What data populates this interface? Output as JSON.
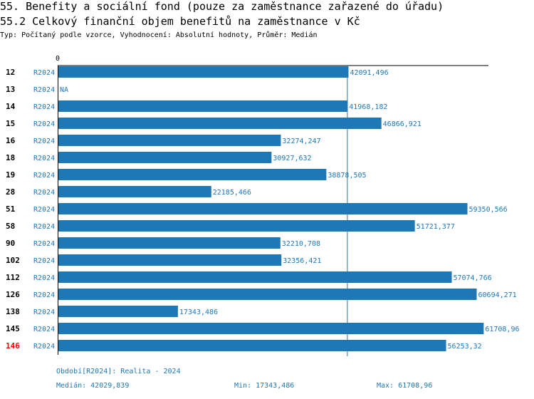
{
  "header": {
    "title": "55. Benefity a sociální fond (pouze za zaměstnance zařazené do úřadu)",
    "subtitle": "55.2 Celkový finanční objem benefitů na zaměstnance v Kč",
    "type_line": "Typ: Počítaný podle vzorce, Vyhodnocení: Absolutní hodnoty, Průměr: Medián"
  },
  "colors": {
    "bar": "#1f77b4",
    "label": "#1f77b4",
    "highlight": "#ff0000",
    "axis": "#000000"
  },
  "chart_data": {
    "type": "bar",
    "orientation": "horizontal",
    "x_tick_labels": [
      "0"
    ],
    "xlim": [
      0,
      62500000
    ],
    "median": 42029839,
    "rows": [
      {
        "category": "12",
        "period": "R2024",
        "value": 42091496,
        "label": "42091,496",
        "highlight": false
      },
      {
        "category": "13",
        "period": "R2024",
        "value": null,
        "label": "NA",
        "highlight": false
      },
      {
        "category": "14",
        "period": "R2024",
        "value": 41968182,
        "label": "41968,182",
        "highlight": false
      },
      {
        "category": "15",
        "period": "R2024",
        "value": 46866921,
        "label": "46866,921",
        "highlight": false
      },
      {
        "category": "16",
        "period": "R2024",
        "value": 32274247,
        "label": "32274,247",
        "highlight": false
      },
      {
        "category": "18",
        "period": "R2024",
        "value": 30927632,
        "label": "30927,632",
        "highlight": false
      },
      {
        "category": "19",
        "period": "R2024",
        "value": 38878505,
        "label": "38878,505",
        "highlight": false
      },
      {
        "category": "28",
        "period": "R2024",
        "value": 22185466,
        "label": "22185,466",
        "highlight": false
      },
      {
        "category": "51",
        "period": "R2024",
        "value": 59350566,
        "label": "59350,566",
        "highlight": false
      },
      {
        "category": "58",
        "period": "R2024",
        "value": 51721377,
        "label": "51721,377",
        "highlight": false
      },
      {
        "category": "90",
        "period": "R2024",
        "value": 32210708,
        "label": "32210,708",
        "highlight": false
      },
      {
        "category": "102",
        "period": "R2024",
        "value": 32356421,
        "label": "32356,421",
        "highlight": false
      },
      {
        "category": "112",
        "period": "R2024",
        "value": 57074766,
        "label": "57074,766",
        "highlight": false
      },
      {
        "category": "126",
        "period": "R2024",
        "value": 60694271,
        "label": "60694,271",
        "highlight": false
      },
      {
        "category": "138",
        "period": "R2024",
        "value": 17343486,
        "label": "17343,486",
        "highlight": false
      },
      {
        "category": "145",
        "period": "R2024",
        "value": 61708960,
        "label": "61708,96",
        "highlight": false
      },
      {
        "category": "146",
        "period": "R2024",
        "value": 56253320,
        "label": "56253,32",
        "highlight": true
      }
    ]
  },
  "footer": {
    "period": "Období[R2024]: Realita - 2024",
    "median": "Medián: 42029,839",
    "min": "Min: 17343,486",
    "max": "Max: 61708,96"
  }
}
